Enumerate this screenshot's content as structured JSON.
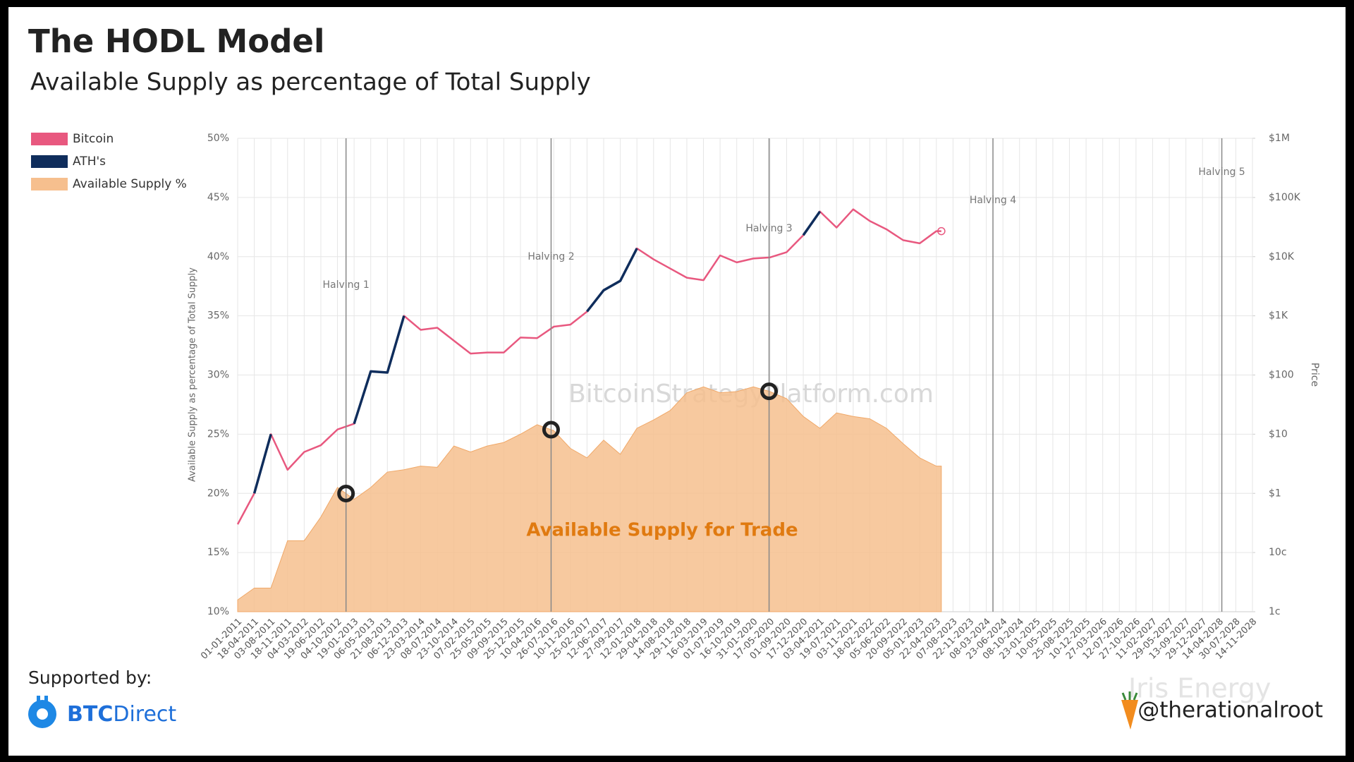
{
  "chart_data": {
    "type": "line",
    "title": "The HODL Model",
    "subtitle": "Available Supply as percentage of Total Supply",
    "y_label": "Available Supply as percentage of Total Supply",
    "y2_label": "Price",
    "watermark": "BitcoinStrategyPlatform.com",
    "annotation": "Available Supply for Trade",
    "x": [
      "01-01-2011",
      "18-04-2011",
      "03-08-2011",
      "18-11-2011",
      "04-03-2012",
      "19-06-2012",
      "04-10-2012",
      "19-01-2013",
      "06-05-2013",
      "21-08-2013",
      "06-12-2013",
      "23-03-2014",
      "08-07-2014",
      "23-10-2014",
      "07-02-2015",
      "25-05-2015",
      "09-09-2015",
      "25-12-2015",
      "10-04-2016",
      "26-07-2016",
      "10-11-2016",
      "25-02-2017",
      "12-06-2017",
      "27-09-2017",
      "12-01-2018",
      "29-04-2018",
      "14-08-2018",
      "29-11-2018",
      "16-03-2019",
      "01-07-2019",
      "16-10-2019",
      "31-01-2020",
      "17-05-2020",
      "01-09-2020",
      "17-12-2020",
      "03-04-2021",
      "19-07-2021",
      "03-11-2021",
      "18-02-2022",
      "05-06-2022",
      "20-09-2022",
      "05-01-2023",
      "22-04-2023",
      "24-05-2023"
    ],
    "series": [
      {
        "name": "Bitcoin",
        "type": "line",
        "axis": "y2",
        "color": "#e8587f",
        "values": [
          0.3,
          1,
          10,
          2.5,
          5,
          6.5,
          12,
          15,
          115,
          110,
          1000,
          580,
          630,
          380,
          230,
          240,
          240,
          430,
          420,
          655,
          710,
          1180,
          2700,
          3900,
          13800,
          9000,
          6300,
          4400,
          4000,
          10500,
          8000,
          9300,
          9700,
          11900,
          23000,
          58000,
          31000,
          63000,
          40000,
          29000,
          19000,
          16800,
          27000,
          27000
        ]
      },
      {
        "name": "ATH's",
        "type": "line",
        "axis": "y2",
        "color": "#0f2d5c",
        "values": [
          null,
          1,
          10,
          null,
          null,
          null,
          null,
          15,
          115,
          110,
          1000,
          null,
          null,
          null,
          null,
          null,
          null,
          null,
          null,
          null,
          null,
          1180,
          2700,
          3900,
          13800,
          null,
          null,
          null,
          null,
          null,
          null,
          null,
          null,
          null,
          23000,
          58000,
          null,
          null,
          null,
          null,
          null,
          null,
          null,
          null
        ]
      },
      {
        "name": "Available Supply %",
        "type": "area",
        "axis": "y",
        "color": "#f6bf8e",
        "values": [
          11,
          12,
          12,
          16,
          16,
          18,
          20.5,
          19.5,
          20.5,
          21.8,
          22,
          22.3,
          22.2,
          24,
          23.5,
          24,
          24.3,
          25,
          25.8,
          25.3,
          23.8,
          23,
          24.5,
          23.3,
          25.5,
          26.2,
          27,
          28.5,
          29,
          28.5,
          28.6,
          29,
          28.6,
          28,
          26.5,
          25.5,
          26.8,
          26.5,
          26.3,
          25.5,
          24.2,
          23,
          22.3,
          22.3
        ]
      }
    ],
    "xlim": [
      "01-01-2011",
      "14-11-2028"
    ],
    "xticks": [
      "01-01-2011",
      "18-04-2011",
      "03-08-2011",
      "18-11-2011",
      "04-03-2012",
      "19-06-2012",
      "04-10-2012",
      "19-01-2013",
      "06-05-2013",
      "21-08-2013",
      "06-12-2013",
      "23-03-2014",
      "08-07-2014",
      "23-10-2014",
      "07-02-2015",
      "25-05-2015",
      "09-09-2015",
      "25-12-2015",
      "10-04-2016",
      "26-07-2016",
      "10-11-2016",
      "25-02-2017",
      "12-06-2017",
      "27-09-2017",
      "12-01-2018",
      "29-04-2018",
      "14-08-2018",
      "29-11-2018",
      "16-03-2019",
      "01-07-2019",
      "16-10-2019",
      "31-01-2020",
      "17-05-2020",
      "01-09-2020",
      "17-12-2020",
      "03-04-2021",
      "19-07-2021",
      "03-11-2021",
      "18-02-2022",
      "05-06-2022",
      "20-09-2022",
      "05-01-2023",
      "22-04-2023",
      "07-08-2023",
      "22-11-2023",
      "08-03-2024",
      "23-06-2024",
      "08-10-2024",
      "23-01-2025",
      "10-05-2025",
      "25-08-2025",
      "10-12-2025",
      "27-03-2026",
      "12-07-2026",
      "27-10-2026",
      "11-02-2027",
      "29-05-2027",
      "13-09-2027",
      "29-12-2027",
      "14-04-2028",
      "30-07-2028",
      "14-11-2028"
    ],
    "ylim": [
      10,
      50
    ],
    "yticks": [
      {
        "value": 10,
        "label": "10%"
      },
      {
        "value": 15,
        "label": "15%"
      },
      {
        "value": 20,
        "label": "20%"
      },
      {
        "value": 25,
        "label": "25%"
      },
      {
        "value": 30,
        "label": "30%"
      },
      {
        "value": 35,
        "label": "35%"
      },
      {
        "value": 40,
        "label": "40%"
      },
      {
        "value": 45,
        "label": "45%"
      },
      {
        "value": 50,
        "label": "50%"
      }
    ],
    "y2lim": [
      0.01,
      1000000
    ],
    "y2log": true,
    "y2ticks": [
      {
        "value": 0.01,
        "label": "1c"
      },
      {
        "value": 0.1,
        "label": "10c"
      },
      {
        "value": 1,
        "label": "$1"
      },
      {
        "value": 10,
        "label": "$10"
      },
      {
        "value": 100,
        "label": "$100"
      },
      {
        "value": 1000,
        "label": "$1K"
      },
      {
        "value": 10000,
        "label": "$10K"
      },
      {
        "value": 100000,
        "label": "$100K"
      },
      {
        "value": 1000000,
        "label": "$1M"
      }
    ],
    "grid": true,
    "legend": "top-left",
    "halvings": [
      {
        "label": "Halving 1",
        "date": "28-11-2012"
      },
      {
        "label": "Halving 2",
        "date": "09-07-2016"
      },
      {
        "label": "Halving 3",
        "date": "11-05-2020"
      },
      {
        "label": "Halving 4",
        "date": "20-04-2024"
      },
      {
        "label": "Halving 5",
        "date": "01-05-2028"
      }
    ]
  },
  "footer": {
    "supported_by": "Supported by:",
    "logo": [
      "BTC",
      "Direct"
    ],
    "faint_logo": "Iris Energy",
    "handle": "@therationalroot"
  }
}
